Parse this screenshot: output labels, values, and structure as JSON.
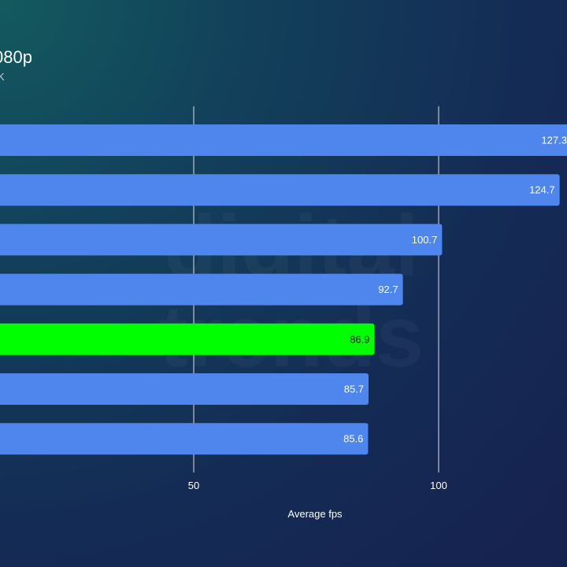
{
  "header": {
    "title": "080p",
    "subtitle": "K"
  },
  "watermark": {
    "text": "digital trends"
  },
  "colors": {
    "bar": "#4f86ee",
    "highlight": "#00ff00",
    "gridline": "#ffffff"
  },
  "chart_data": {
    "type": "bar",
    "orientation": "horizontal",
    "values": [
      127.3,
      124.7,
      100.7,
      92.7,
      86.9,
      85.7,
      85.6
    ],
    "highlight_index": 4,
    "xticks": [
      50,
      100
    ],
    "xlabel": "Average fps",
    "grid": "vertical gridlines at ticks"
  }
}
